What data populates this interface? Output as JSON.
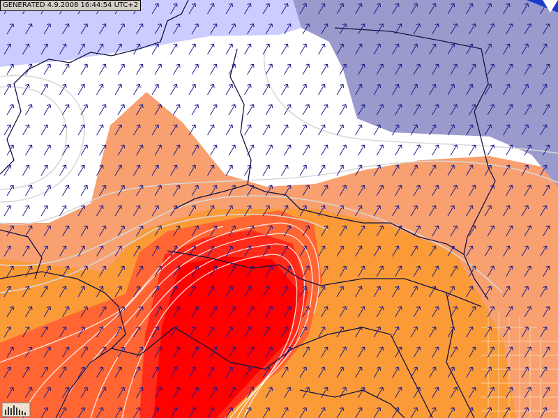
{
  "header": {
    "generated": "GENERATED 4.9.2008 16:44:54 UTC+2"
  }
}
